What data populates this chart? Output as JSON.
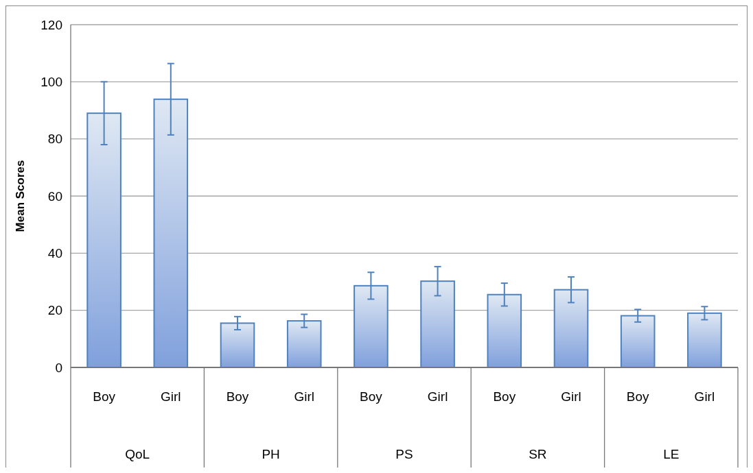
{
  "chart_data": {
    "type": "bar",
    "ylabel": "Mean Scores",
    "categories": [
      "Boy",
      "Girl",
      "Boy",
      "Girl",
      "Boy",
      "Girl",
      "Boy",
      "Girl",
      "Boy",
      "Girl"
    ],
    "series": [
      {
        "color": "#4f81bd",
        "values": [
          89.0,
          93.9,
          15.5,
          16.3,
          28.6,
          30.2,
          25.5,
          27.2,
          18.1,
          19.0
        ],
        "errors": [
          11,
          12.5,
          2.3,
          2.3,
          4.7,
          5.1,
          4.0,
          4.5,
          2.2,
          2.3
        ]
      }
    ],
    "annotations": [
      "QoL",
      "PH",
      "PS",
      "SR",
      "LE"
    ],
    "ylim": [
      0,
      120
    ],
    "yticks": [
      0,
      20,
      40,
      60,
      80,
      100,
      120
    ],
    "grid": "y"
  }
}
